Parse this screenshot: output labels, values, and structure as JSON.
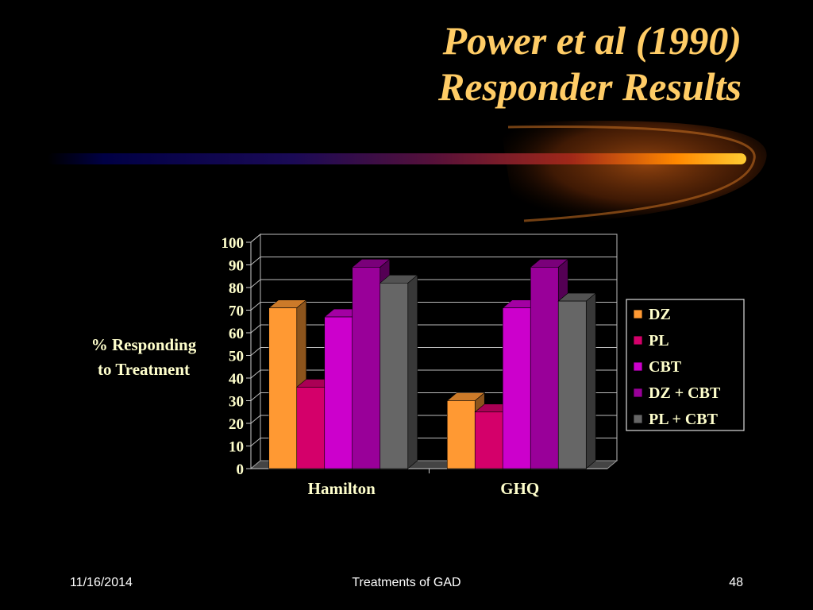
{
  "slide": {
    "title_line1": "Power et al (1990)",
    "title_line2": "Responder Results",
    "title_color": "#FFCC66",
    "footer_date": "11/16/2014",
    "footer_center": "Treatments of GAD",
    "footer_page": "48"
  },
  "chart_data": {
    "type": "bar",
    "categories": [
      "Hamilton",
      "GHQ"
    ],
    "series": [
      {
        "name": "DZ",
        "values": [
          71,
          30
        ],
        "color": "#FF9933"
      },
      {
        "name": "PL",
        "values": [
          36,
          25
        ],
        "color": "#D4006A"
      },
      {
        "name": "CBT",
        "values": [
          67,
          71
        ],
        "color": "#CC00CC"
      },
      {
        "name": "DZ + CBT",
        "values": [
          89,
          89
        ],
        "color": "#990099"
      },
      {
        "name": "PL + CBT",
        "values": [
          82,
          74
        ],
        "color": "#666666"
      }
    ],
    "ylabel_line1": "% Responding",
    "ylabel_line2": "to Treatment",
    "ylim": [
      0,
      100
    ],
    "yticks": [
      0,
      10,
      20,
      30,
      40,
      50,
      60,
      70,
      80,
      90,
      100
    ],
    "grid": true,
    "legend": "right",
    "text_color": "#FFFFCC"
  }
}
